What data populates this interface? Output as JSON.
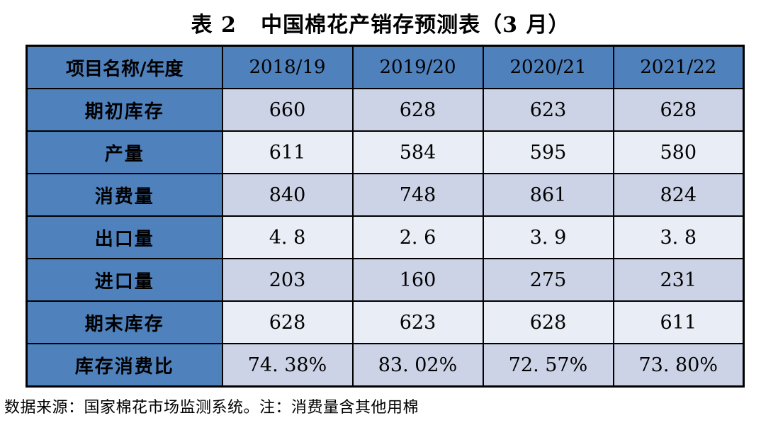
{
  "title": "表 2   中国棉花产销存预测表（3 月）",
  "table": {
    "header": {
      "label": "项目名称/年度",
      "years": [
        "2018/19",
        "2019/20",
        "2020/21",
        "2021/22"
      ]
    },
    "rows": [
      {
        "label": "期初库存",
        "values": [
          "660",
          "628",
          "623",
          "628"
        ]
      },
      {
        "label": "产量",
        "values": [
          "611",
          "584",
          "595",
          "580"
        ]
      },
      {
        "label": "消费量",
        "values": [
          "840",
          "748",
          "861",
          "824"
        ]
      },
      {
        "label": "出口量",
        "values": [
          "4. 8",
          "2. 6",
          "3. 9",
          "3. 8"
        ]
      },
      {
        "label": "进口量",
        "values": [
          "203",
          "160",
          "275",
          "231"
        ]
      },
      {
        "label": "期末库存",
        "values": [
          "628",
          "623",
          "628",
          "611"
        ]
      },
      {
        "label": "库存消费比",
        "values": [
          "74. 38%",
          "83. 02%",
          "72. 57%",
          "73. 80%"
        ]
      }
    ]
  },
  "footnote": "数据来源：国家棉花市场监测系统。注：消费量含其他用棉",
  "colors": {
    "header_blue": "#4F81BD",
    "row_dark": "#CCD3E6",
    "row_light": "#E9EDF5",
    "border": "#000000",
    "text": "#000000",
    "background": "#FFFFFF"
  },
  "chart_data": {
    "type": "table",
    "title": "表 2 中国棉花产销存预测表（3 月）",
    "columns": [
      "项目名称/年度",
      "2018/19",
      "2019/20",
      "2020/21",
      "2021/22"
    ],
    "rows": [
      {
        "item": "期初库存",
        "values": [
          660,
          628,
          623,
          628
        ]
      },
      {
        "item": "产量",
        "values": [
          611,
          584,
          595,
          580
        ]
      },
      {
        "item": "消费量",
        "values": [
          840,
          748,
          861,
          824
        ]
      },
      {
        "item": "出口量",
        "values": [
          4.8,
          2.6,
          3.9,
          3.8
        ]
      },
      {
        "item": "进口量",
        "values": [
          203,
          160,
          275,
          231
        ]
      },
      {
        "item": "期末库存",
        "values": [
          628,
          623,
          628,
          611
        ]
      },
      {
        "item": "库存消费比",
        "values": [
          "74.38%",
          "83.02%",
          "72.57%",
          "73.80%"
        ]
      }
    ],
    "note": "数据来源：国家棉花市场监测系统。注：消费量含其他用棉",
    "layout_hints": {
      "header_fill": "#4F81BD",
      "row_fill_alternating": [
        "#CCD3E6",
        "#E9EDF5"
      ],
      "grid": true
    }
  }
}
